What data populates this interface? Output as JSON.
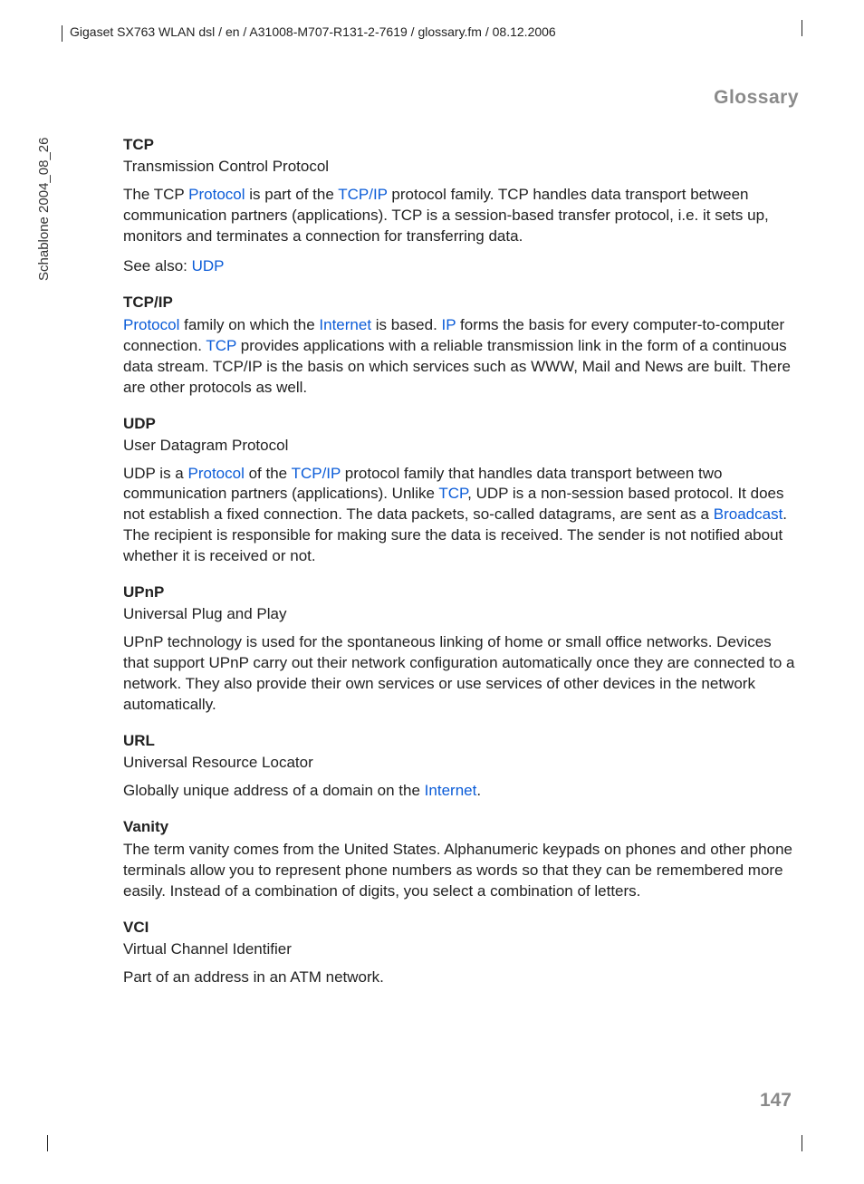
{
  "header_path": "Gigaset SX763 WLAN dsl / en / A31008-M707-R131-2-7619 / glossary.fm / 08.12.2006",
  "side_label": "Schablone 2004_08_26",
  "section_title": "Glossary",
  "page_number": "147",
  "link_color": "#0b5cd8",
  "text_color": "#222222",
  "muted_color": "#8a8a8a",
  "entries": {
    "tcp": {
      "term": "TCP",
      "expansion": "Transmission Control Protocol",
      "p1_a": "The TCP ",
      "p1_link1": "Protocol",
      "p1_b": " is part of the ",
      "p1_link2": "TCP/IP",
      "p1_c": " protocol family. TCP handles data transport between communication partners (applications). TCP is a session-based transfer protocol, i.e. it sets up, monitors and terminates a connection for transferring data.",
      "p2_a": "See also: ",
      "p2_link1": "UDP"
    },
    "tcpip": {
      "term": "TCP/IP",
      "p1_link1": "Protocol",
      "p1_a": " family on which the ",
      "p1_link2": "Internet",
      "p1_b": " is based. ",
      "p1_link3": "IP",
      "p1_c": " forms the basis for every computer-to-computer connection. ",
      "p1_link4": "TCP",
      "p1_d": " provides applications with a reliable transmission link in the form of a continuous data stream. TCP/IP is the basis on which services such as WWW, Mail and News are built. There are other protocols as well."
    },
    "udp": {
      "term": "UDP",
      "expansion": "User Datagram Protocol",
      "p1_a": "UDP is a ",
      "p1_link1": "Protocol",
      "p1_b": " of the ",
      "p1_link2": "TCP/IP",
      "p1_c": " protocol family that handles data transport between two communication partners (applications). Unlike ",
      "p1_link3": "TCP",
      "p1_d": ", UDP is a non-session based protocol. It does not establish a fixed connection. The data packets, so-called datagrams, are sent as a ",
      "p1_link4": "Broadcast",
      "p1_e": ". The recipient is responsible for making sure the data is received. The sender is not notified about whether it is received or not."
    },
    "upnp": {
      "term": "UPnP",
      "expansion": "Universal Plug and Play",
      "p1": "UPnP technology is used for the spontaneous linking of home or small office networks. Devices that support UPnP carry out their network configuration automatically once they are connected to a network. They also provide their own services or use services of other devices in the network automatically."
    },
    "url": {
      "term": "URL",
      "expansion": "Universal Resource Locator",
      "p1_a": "Globally unique address of a domain on the ",
      "p1_link1": "Internet",
      "p1_b": "."
    },
    "vanity": {
      "term": "Vanity",
      "p1": "The term vanity comes from the United States. Alphanumeric keypads on phones and other phone terminals allow you to represent phone numbers as words so that they can be remembered more easily. Instead of a combination of digits, you select a combination of letters."
    },
    "vci": {
      "term": "VCI",
      "expansion": "Virtual Channel Identifier",
      "p1": "Part of an address in an ATM network."
    }
  }
}
